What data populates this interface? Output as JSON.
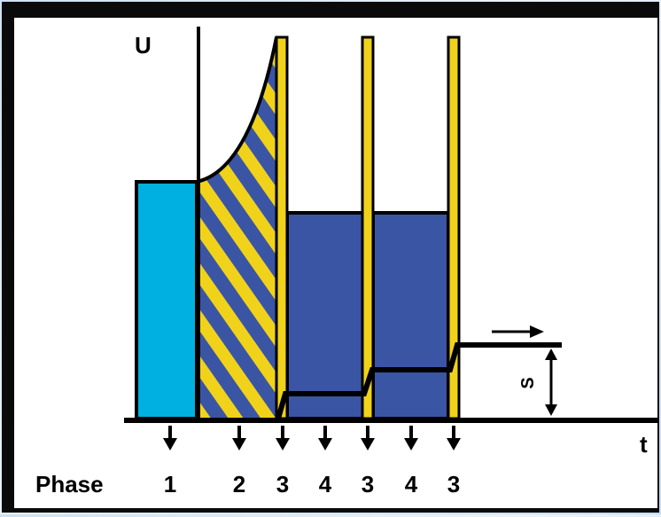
{
  "diagram": {
    "y_axis_label": "U",
    "x_axis_label": "t",
    "phase_label": "Phase",
    "phases": [
      "1",
      "2",
      "3",
      "4",
      "3",
      "4",
      "3"
    ],
    "s_label": "S"
  },
  "colors": {
    "frame_border": "#0a0a0a",
    "background": "#ffffff",
    "phase1_fill": "#00b0e0",
    "blue_fill": "#3b55a5",
    "yellow": "#f0d21a",
    "line": "#000000"
  }
}
